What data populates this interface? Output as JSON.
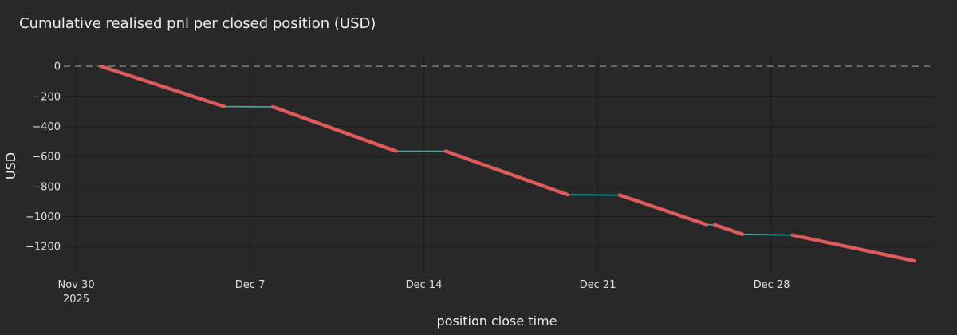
{
  "chart_data": {
    "type": "line",
    "title": "Cumulative realised pnl per closed position (USD)",
    "xlabel": "position close time",
    "ylabel": "USD",
    "x_ticks": [
      {
        "date": "2025-11-30",
        "label": "Nov 30",
        "sublabel": "2025"
      },
      {
        "date": "2025-12-07",
        "label": "Dec 7"
      },
      {
        "date": "2025-12-14",
        "label": "Dec 14"
      },
      {
        "date": "2025-12-21",
        "label": "Dec 21"
      },
      {
        "date": "2025-12-28",
        "label": "Dec 28"
      }
    ],
    "y_ticks": [
      0,
      -200,
      -400,
      -600,
      -800,
      -1000,
      -1200
    ],
    "xlim": [
      "2025-11-29T12:00",
      "2026-01-03T12:00"
    ],
    "ylim": [
      -1390,
      80
    ],
    "zero_line": true,
    "grid": true,
    "line_color": "#1fbfb0",
    "marker_color": "#e05c5c",
    "segments": [
      {
        "start": "2025-12-01T00:00",
        "end": "2025-12-05T23:00",
        "y_start": 0,
        "y_end": -268
      },
      {
        "start": "2025-12-07T22:00",
        "end": "2025-12-12T21:00",
        "y_start": -270,
        "y_end": -565
      },
      {
        "start": "2025-12-14T21:00",
        "end": "2025-12-19T19:00",
        "y_start": -565,
        "y_end": -855
      },
      {
        "start": "2025-12-21T21:00",
        "end": "2025-12-25T09:00",
        "y_start": -857,
        "y_end": -1053
      },
      {
        "start": "2025-12-25T17:00",
        "end": "2025-12-26T20:00",
        "y_start": -1055,
        "y_end": -1118
      },
      {
        "start": "2025-12-28T20:00",
        "end": "2026-01-02T18:00",
        "y_start": -1123,
        "y_end": -1295
      }
    ]
  }
}
